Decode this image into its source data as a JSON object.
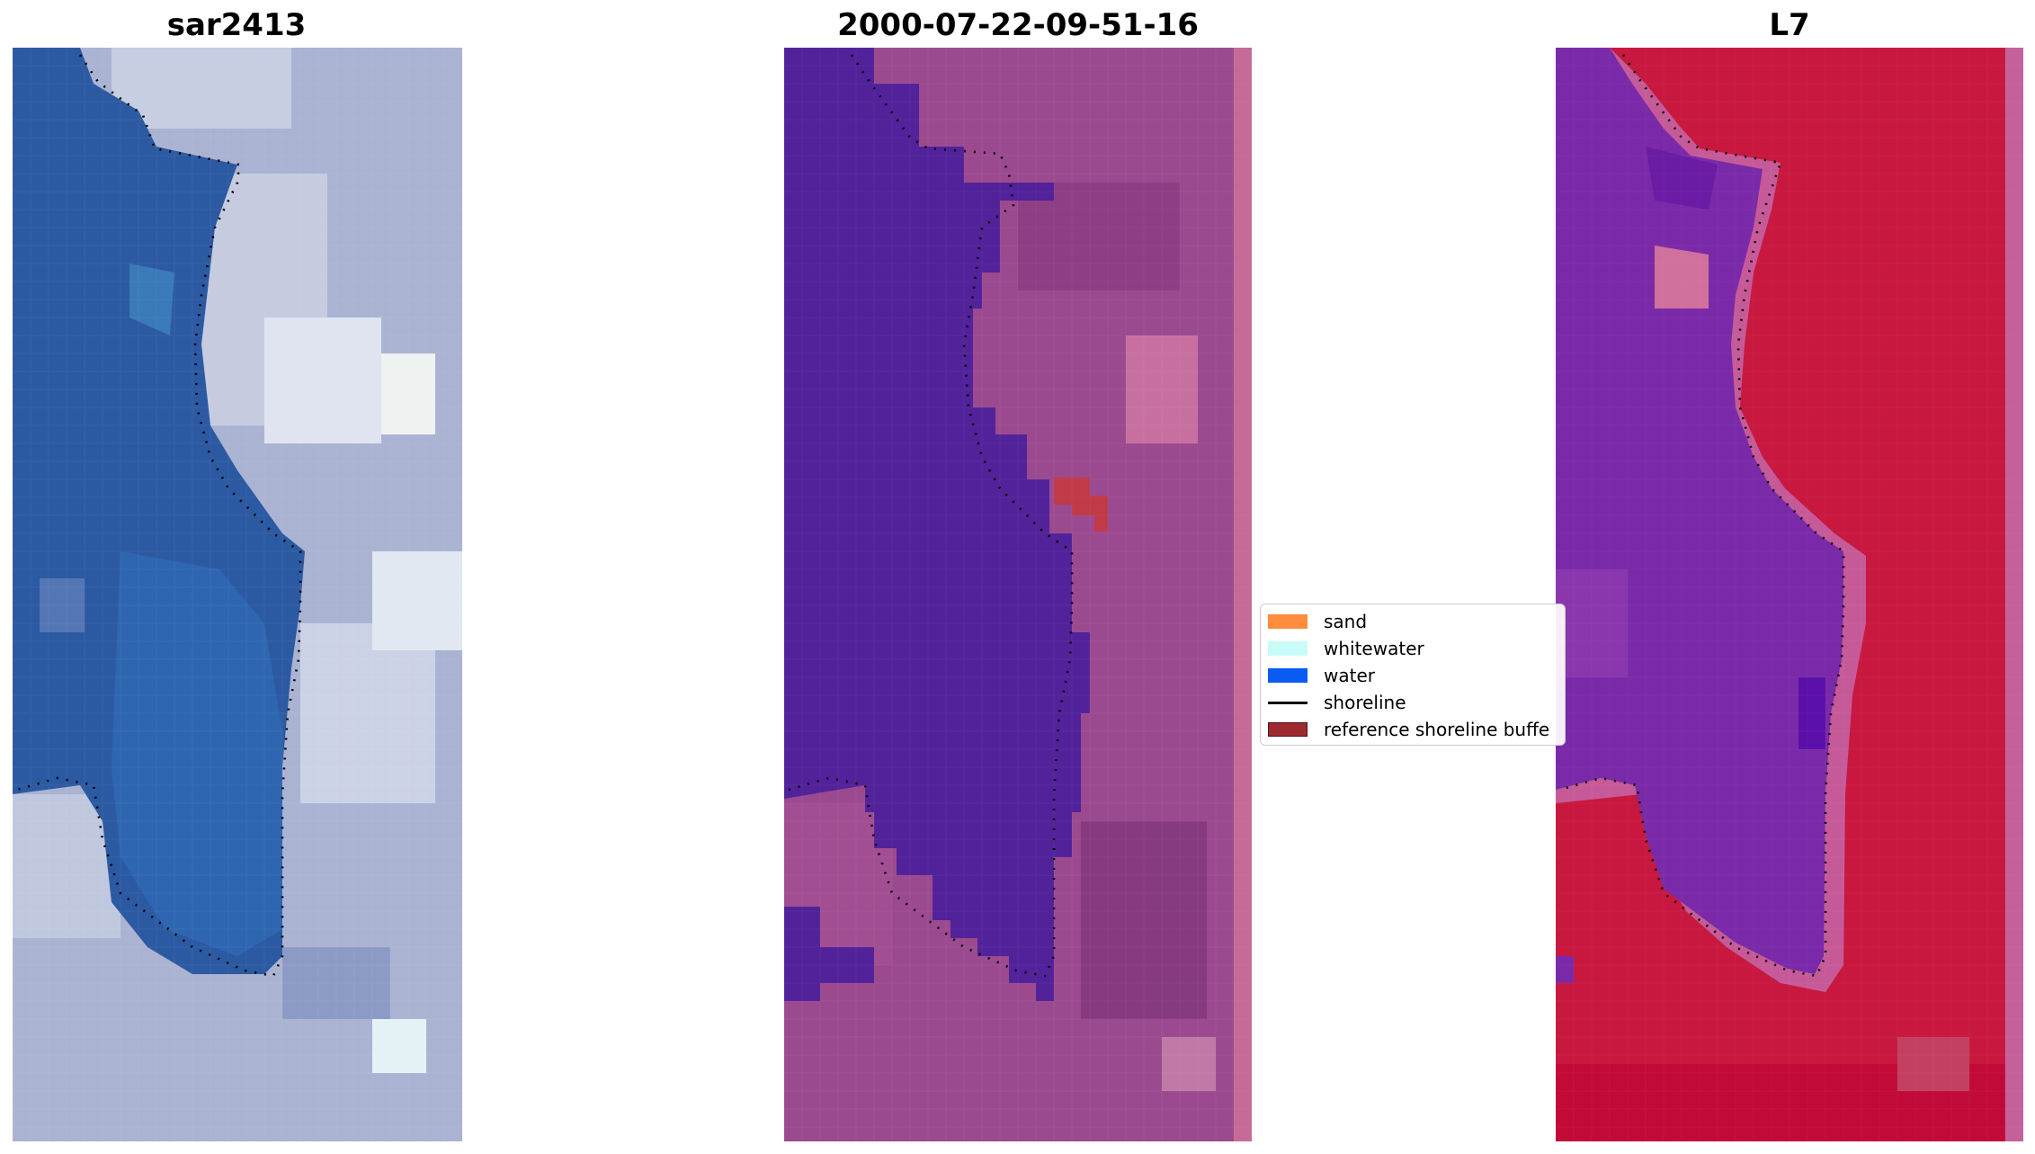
{
  "panels": [
    {
      "id": "rgb",
      "title": "sar2413"
    },
    {
      "id": "classified",
      "title": "2000-07-22-09-51-16"
    },
    {
      "id": "index",
      "title": "L7"
    }
  ],
  "legend": {
    "items": [
      {
        "label": "sand",
        "color": "#ff8c3c",
        "kind": "patch"
      },
      {
        "label": "whitewater",
        "color": "#c8fcf8",
        "kind": "patch"
      },
      {
        "label": "water",
        "color": "#0a5cf0",
        "kind": "patch"
      },
      {
        "label": "shoreline",
        "color": "#000000",
        "kind": "line"
      },
      {
        "label": "reference shoreline buffe",
        "color": "#9c2a30",
        "kind": "patch"
      }
    ]
  },
  "colors": {
    "rgb_water": "#2a5aa0",
    "rgb_land": "#b4bcd8",
    "classified_water": "#53229a",
    "classified_land": "#9a4a8c",
    "index_water": "#7a2aa8",
    "index_land": "#c8183e"
  }
}
